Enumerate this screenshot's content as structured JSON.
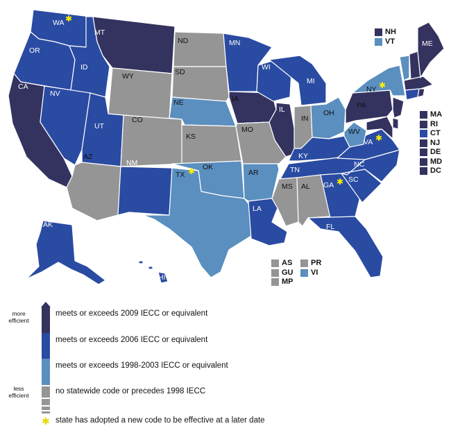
{
  "colors": {
    "c2009": "#34325f",
    "c2006": "#2a4ba2",
    "c1998": "#5a8fbf",
    "cnone": "#959595",
    "star": "#ffee00"
  },
  "states": {
    "WA": "WA",
    "OR": "OR",
    "CA": "CA",
    "ID": "ID",
    "NV": "NV",
    "MT": "MT",
    "WY": "WY",
    "UT": "UT",
    "AZ": "AZ",
    "CO": "CO",
    "NM": "NM",
    "ND": "ND",
    "SD": "SD",
    "NE": "NE",
    "KS": "KS",
    "OK": "OK",
    "TX": "TX",
    "MN": "MN",
    "IA": "IA",
    "MO": "MO",
    "AR": "AR",
    "LA": "LA",
    "WI": "WI",
    "IL": "IL",
    "MI": "MI",
    "IN": "IN",
    "OH": "OH",
    "KY": "KY",
    "TN": "TN",
    "MS": "MS",
    "AL": "AL",
    "GA": "GA",
    "FL": "FL",
    "SC": "SC",
    "NC": "NC",
    "VA": "VA",
    "WV": "WV",
    "PA": "PA",
    "NY": "NY",
    "ME": "ME",
    "AK": "AK",
    "HI": "HI"
  },
  "stars": [
    "WA",
    "TX",
    "NY",
    "VA",
    "GA"
  ],
  "keys_top": [
    {
      "label": "NH",
      "color": "#34325f"
    },
    {
      "label": "VT",
      "color": "#5a8fbf"
    }
  ],
  "keys_east": [
    {
      "label": "MA",
      "color": "#34325f"
    },
    {
      "label": "RI",
      "color": "#34325f"
    },
    {
      "label": "CT",
      "color": "#2a4ba2"
    },
    {
      "label": "NJ",
      "color": "#34325f"
    },
    {
      "label": "DE",
      "color": "#34325f"
    },
    {
      "label": "MD",
      "color": "#34325f"
    },
    {
      "label": "DC",
      "color": "#34325f"
    }
  ],
  "keys_territories": [
    {
      "label": "AS",
      "color": "#959595"
    },
    {
      "label": "GU",
      "color": "#959595"
    },
    {
      "label": "MP",
      "color": "#959595"
    },
    {
      "label": "PR",
      "color": "#959595"
    },
    {
      "label": "VI",
      "color": "#5a8fbf"
    }
  ],
  "legend": {
    "more_efficient": "more efficient",
    "less_efficient": "less efficient",
    "items": [
      "meets or exceeds 2009 IECC or equivalent",
      "meets or exceeds 2006 IECC or equivalent",
      "meets or exceeds 1998-2003 IECC or equivalent",
      "no statewide code or precedes 1998 IECC"
    ],
    "star_note": "state has adopted a new code to be effective at a later date"
  }
}
